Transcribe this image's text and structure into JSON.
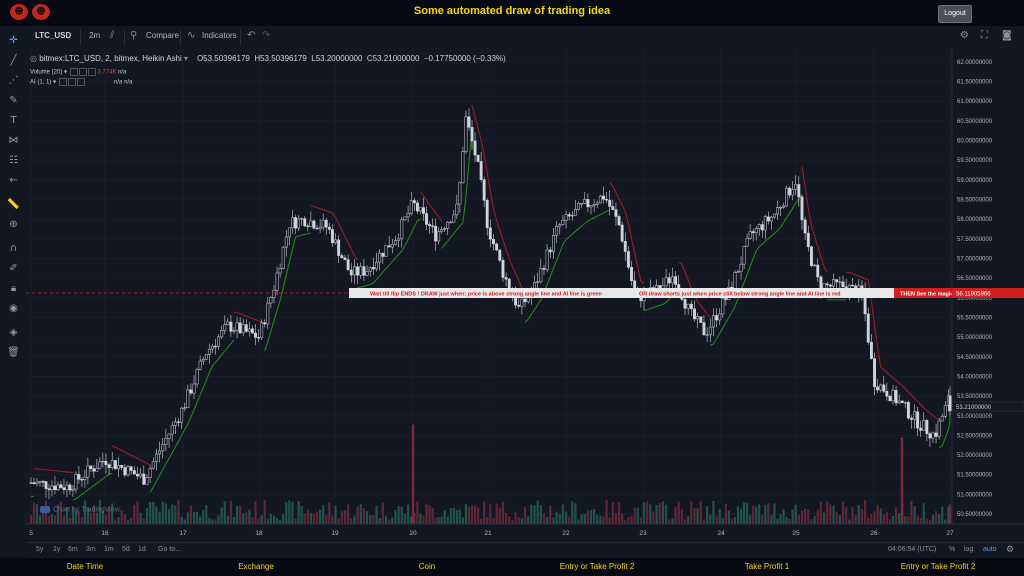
{
  "header": {
    "title": "Some automated draw of trading idea",
    "logout_label": "Logout"
  },
  "toolbar": {
    "symbol": "LTC_USD",
    "interval": "2m",
    "compare_label": "Compare",
    "indicators_label": "Indicators"
  },
  "legend": {
    "title": "bitmex:LTC_USD, 2, bitmex, Heikin Ashi",
    "open": "O53.50396179",
    "high": "H53.50396179",
    "low": "L53.20000000",
    "close": "C53.21000000",
    "change": "−0.17750000 (−0.33%)",
    "volume_label": "Volume (20)",
    "volume_value": "3.774K",
    "volume_na": "n/a",
    "ai_label": "AI (1, 1)",
    "ai_na1": "n/a",
    "ai_na2": "n/a"
  },
  "banner": {
    "text1": "Wait till flip ENDS  !   DRAW just when:  price is above strong angle line and AI line is green",
    "text2": "OR       draw shorts just when price still below strong angle line and AI line is red",
    "text3": "THEN See the magic!!"
  },
  "price_axis": {
    "current_price": "56.11905966",
    "last_price": "53.21000000",
    "labels": [
      "62.00000000",
      "61.50000000",
      "61.00000000",
      "60.50000000",
      "60.00000000",
      "59.50000000",
      "59.00000000",
      "58.50000000",
      "58.00000000",
      "57.50000000",
      "57.00000000",
      "56.50000000",
      "56.00000000",
      "55.50000000",
      "55.00000000",
      "54.50000000",
      "54.00000000",
      "53.50000000",
      "53.00000000",
      "52.50000000",
      "52.00000000",
      "51.50000000",
      "51.00000000",
      "50.50000000"
    ]
  },
  "time_axis": {
    "labels": [
      "5",
      "16",
      "17",
      "18",
      "19",
      "20",
      "21",
      "22",
      "23",
      "24",
      "25",
      "26",
      "27"
    ]
  },
  "chart_data": {
    "type": "candlestick",
    "title": "bitmex:LTC_USD, 2, bitmex, Heikin Ashi",
    "ylim": [
      50.4,
      62.2
    ],
    "x_categories": [
      "5",
      "16",
      "17",
      "18",
      "19",
      "20",
      "21",
      "22",
      "23",
      "24",
      "25",
      "26",
      "27"
    ],
    "approx_close_path": [
      [
        0,
        51.3
      ],
      [
        0.5,
        51.2
      ],
      [
        1,
        51.9
      ],
      [
        1.5,
        51.4
      ],
      [
        2,
        53.2
      ],
      [
        2.3,
        54.6
      ],
      [
        2.6,
        55.3
      ],
      [
        3,
        55.0
      ],
      [
        3.2,
        56.3
      ],
      [
        3.4,
        57.9
      ],
      [
        3.6,
        58.0
      ],
      [
        3.9,
        57.8
      ],
      [
        4.2,
        56.6
      ],
      [
        4.4,
        56.7
      ],
      [
        4.8,
        57.6
      ],
      [
        5,
        58.4
      ],
      [
        5.3,
        57.6
      ],
      [
        5.6,
        58.3
      ],
      [
        5.7,
        60.6
      ],
      [
        5.85,
        59.5
      ],
      [
        6,
        57.8
      ],
      [
        6.2,
        56.6
      ],
      [
        6.4,
        55.7
      ],
      [
        6.6,
        56.3
      ],
      [
        6.9,
        57.8
      ],
      [
        7.2,
        58.3
      ],
      [
        7.5,
        58.6
      ],
      [
        7.7,
        57.8
      ],
      [
        7.9,
        56.0
      ],
      [
        8.2,
        56.2
      ],
      [
        8.4,
        56.6
      ],
      [
        8.6,
        55.6
      ],
      [
        8.8,
        55.1
      ],
      [
        9.1,
        56.1
      ],
      [
        9.4,
        57.6
      ],
      [
        9.7,
        58.1
      ],
      [
        10,
        59.0
      ],
      [
        10.1,
        57.6
      ],
      [
        10.3,
        56.3
      ],
      [
        10.6,
        56.3
      ],
      [
        10.85,
        56.1
      ],
      [
        11.0,
        53.9
      ],
      [
        11.3,
        53.4
      ],
      [
        11.6,
        52.8
      ],
      [
        11.8,
        52.5
      ],
      [
        12,
        53.5
      ],
      [
        12.1,
        53.3
      ]
    ],
    "volume_highlights": [
      52.1,
      52.0
    ],
    "colors": {
      "up": "#d1d4dc",
      "down": "#d1d4dc",
      "ai_up": "#1f8a1f",
      "ai_down": "#9c1d24",
      "volume_up": "#266a55",
      "volume_down": "#7a2c3c",
      "banner_bg": "#e8e8e8",
      "banner_text": "#d01f1f",
      "price_tag": "#d01f1f"
    }
  },
  "bottombar": {
    "ranges": [
      "5y",
      "1y",
      "6m",
      "3m",
      "1m",
      "5d",
      "1d"
    ],
    "goto": "Go to...",
    "clock": "04:06:54 (UTC)",
    "percent": "%",
    "log": "log",
    "auto": "auto"
  },
  "watermark": "Chart by TradingView",
  "footer": {
    "columns": [
      "Date Time",
      "Exchange",
      "Coin",
      "Entry or Take Profit 2",
      "Take Profit 1",
      "Entry or Take Profit 2"
    ]
  }
}
